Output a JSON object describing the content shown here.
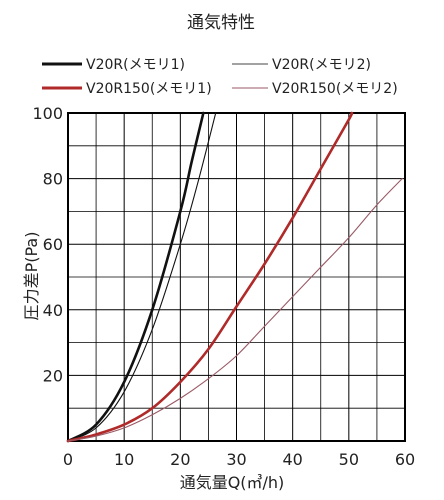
{
  "chart_data": {
    "type": "line",
    "title": "通気特性",
    "xlabel": "通気量Q(㎥/h)",
    "ylabel": "圧力差P(Pa)",
    "xlim": [
      0,
      60
    ],
    "ylim": [
      0,
      100
    ],
    "x_ticks": [
      "0",
      "10",
      "20",
      "30",
      "40",
      "50",
      "60"
    ],
    "y_ticks": [
      "20",
      "40",
      "60",
      "80",
      "100"
    ],
    "grid": true,
    "legend_position": "top",
    "series": [
      {
        "name": "V20R(メモリ1)",
        "color": "#111111",
        "weight": "bold",
        "x": [
          0,
          5,
          10,
          15,
          20,
          22,
          24.1
        ],
        "y": [
          0,
          5,
          18,
          40,
          70,
          85,
          100
        ]
      },
      {
        "name": "V20R(メモリ2)",
        "color": "#111111",
        "weight": "thin",
        "x": [
          0,
          5,
          10,
          15,
          20,
          23,
          26.3
        ],
        "y": [
          0,
          4,
          15,
          34,
          60,
          78,
          100
        ]
      },
      {
        "name": "V20R150(メモリ1)",
        "color": "#b02a2a",
        "weight": "bold",
        "x": [
          0,
          5,
          10,
          15,
          20,
          25,
          30,
          35,
          40,
          45,
          50,
          50.5
        ],
        "y": [
          0,
          2,
          5,
          10,
          18,
          28,
          41,
          54,
          68,
          83,
          98,
          100
        ]
      },
      {
        "name": "V20R150(メモリ2)",
        "color": "#9a5a66",
        "weight": "thin",
        "x": [
          0,
          5,
          10,
          15,
          20,
          25,
          30,
          35,
          40,
          45,
          50,
          55,
          59.5
        ],
        "y": [
          0,
          1.5,
          4,
          8,
          13,
          19,
          26,
          35,
          44,
          53,
          62,
          72,
          80
        ]
      }
    ]
  }
}
